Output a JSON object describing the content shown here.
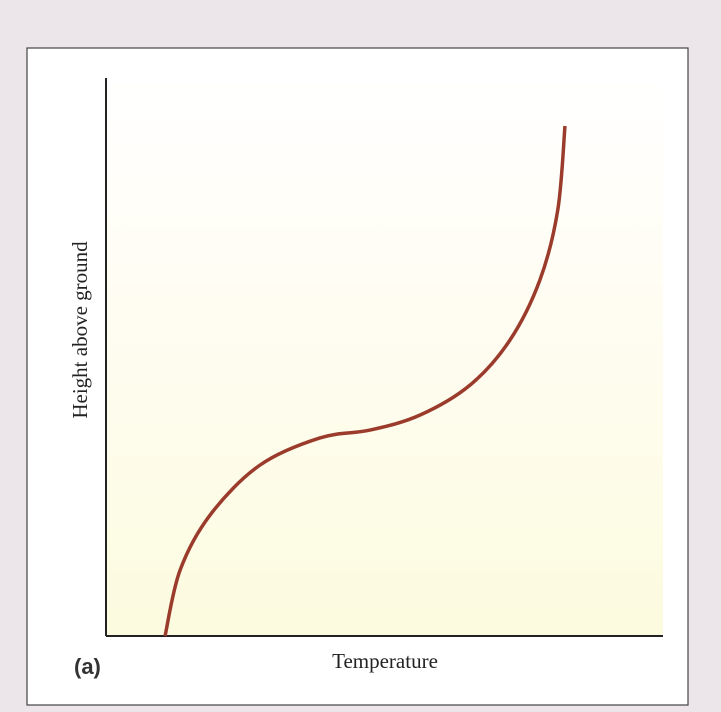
{
  "chart_data": {
    "type": "line",
    "panel_label": "(a)",
    "x_label": "Temperature",
    "y_label": "Height above ground",
    "x": [
      10.6,
      13.3,
      18.7,
      27.6,
      38.4,
      47.4,
      56.4,
      65.4,
      72.5,
      77.9,
      81.1,
      82.4
    ],
    "values": [
      0,
      11.8,
      21.7,
      30.6,
      35.5,
      36.9,
      39.6,
      45.0,
      53.0,
      63.8,
      76.3,
      91.4
    ],
    "color": "#9a3b2c",
    "xlim": [
      0,
      100
    ],
    "ylim": [
      0,
      100
    ]
  }
}
